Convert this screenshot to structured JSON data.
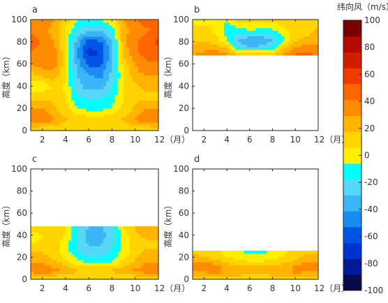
{
  "colorbar": {
    "title": "纬向风（m/s）",
    "min": -100,
    "max": 100,
    "ticks": [
      100,
      80,
      60,
      40,
      20,
      0,
      -20,
      -40,
      -60,
      -80,
      -100
    ],
    "colors": [
      "#0a0a4a",
      "#001a9a",
      "#0033cc",
      "#0055e6",
      "#1a8cf0",
      "#3cb4f5",
      "#55d8f5",
      "#00ffff",
      "#fff000",
      "#ffd400",
      "#ffb400",
      "#ff8c00",
      "#ff6400",
      "#f03c00",
      "#d21e00",
      "#b40a00",
      "#7a0000"
    ]
  },
  "chart_data": [
    {
      "type": "heatmap",
      "panel": "a",
      "ylabel": "高度（km）",
      "xlim": [
        1,
        12
      ],
      "ylim": [
        0,
        100
      ],
      "xticks": [
        "2",
        "4",
        "6",
        "8",
        "10",
        "12（月）"
      ],
      "yticks": [
        "0",
        "20",
        "40",
        "60",
        "80",
        "100"
      ],
      "data_top_km": 100,
      "months": [
        1,
        2,
        3,
        4,
        5,
        6,
        7,
        8,
        9,
        10,
        11,
        12
      ],
      "heights_km": [
        0,
        10,
        20,
        30,
        40,
        50,
        60,
        70,
        80,
        90,
        100
      ],
      "values": [
        [
          5,
          5,
          5,
          5,
          5,
          5,
          5,
          5,
          5,
          5,
          5,
          5
        ],
        [
          40,
          38,
          30,
          20,
          15,
          15,
          15,
          15,
          20,
          30,
          38,
          42
        ],
        [
          30,
          30,
          20,
          10,
          -5,
          -10,
          -10,
          -5,
          10,
          20,
          30,
          30
        ],
        [
          15,
          15,
          15,
          5,
          -15,
          -20,
          -20,
          -10,
          5,
          15,
          15,
          15
        ],
        [
          -5,
          -5,
          10,
          5,
          -25,
          -35,
          -35,
          -20,
          5,
          15,
          20,
          20
        ],
        [
          15,
          20,
          25,
          5,
          -30,
          -40,
          -45,
          -25,
          5,
          25,
          30,
          30
        ],
        [
          30,
          35,
          35,
          10,
          -35,
          -55,
          -55,
          -30,
          10,
          30,
          40,
          40
        ],
        [
          40,
          40,
          35,
          10,
          -40,
          -70,
          -65,
          -35,
          20,
          40,
          45,
          50
        ],
        [
          45,
          40,
          30,
          5,
          -35,
          -60,
          -55,
          -30,
          25,
          40,
          50,
          55
        ],
        [
          40,
          35,
          25,
          5,
          -20,
          -30,
          -30,
          -15,
          25,
          35,
          40,
          45
        ],
        [
          35,
          35,
          30,
          15,
          -5,
          -5,
          -5,
          5,
          30,
          40,
          45,
          45
        ]
      ]
    },
    {
      "type": "heatmap",
      "panel": "b",
      "ylabel": "高度（km）",
      "xlim": [
        1,
        12
      ],
      "ylim": [
        0,
        100
      ],
      "xticks": [
        "2",
        "4",
        "6",
        "8",
        "10",
        "12（月）"
      ],
      "yticks": [
        "0",
        "20",
        "40",
        "60",
        "80",
        "100"
      ],
      "data_top_km": 100,
      "data_bottom_km": 68,
      "months": [
        1,
        2,
        3,
        4,
        5,
        6,
        7,
        8,
        9,
        10,
        11,
        12
      ],
      "heights_km": [
        68,
        75,
        82,
        89,
        96,
        100
      ],
      "values": [
        [
          30,
          35,
          40,
          35,
          20,
          25,
          25,
          20,
          35,
          45,
          45,
          40
        ],
        [
          20,
          25,
          25,
          15,
          -20,
          -30,
          -25,
          -15,
          15,
          30,
          35,
          35
        ],
        [
          15,
          15,
          10,
          -5,
          -30,
          -40,
          -40,
          -30,
          -5,
          15,
          20,
          25
        ],
        [
          15,
          10,
          5,
          -10,
          -15,
          -10,
          -10,
          -10,
          0,
          10,
          15,
          20
        ],
        [
          5,
          5,
          5,
          -10,
          0,
          5,
          0,
          0,
          10,
          15,
          15,
          15
        ],
        [
          5,
          5,
          5,
          5,
          10,
          10,
          10,
          10,
          10,
          10,
          10,
          10
        ]
      ]
    },
    {
      "type": "heatmap",
      "panel": "c",
      "ylabel": "高度（km）",
      "xlim": [
        1,
        12
      ],
      "ylim": [
        0,
        100
      ],
      "xticks": [
        "2",
        "4",
        "6",
        "8",
        "10",
        "12（月）"
      ],
      "yticks": [
        "0",
        "20",
        "40",
        "60",
        "80",
        "100"
      ],
      "data_top_km": 48,
      "months": [
        1,
        2,
        3,
        4,
        5,
        6,
        7,
        8,
        9,
        10,
        11,
        12
      ],
      "heights_km": [
        0,
        8,
        16,
        24,
        32,
        40,
        48
      ],
      "values": [
        [
          5,
          5,
          5,
          5,
          5,
          5,
          5,
          5,
          5,
          5,
          5,
          5
        ],
        [
          35,
          38,
          35,
          25,
          20,
          18,
          18,
          20,
          25,
          32,
          38,
          40
        ],
        [
          28,
          28,
          20,
          10,
          -2,
          -10,
          -10,
          -5,
          8,
          18,
          28,
          30
        ],
        [
          20,
          18,
          10,
          0,
          -15,
          -25,
          -25,
          -15,
          0,
          15,
          20,
          20
        ],
        [
          5,
          10,
          10,
          0,
          -20,
          -30,
          -30,
          -20,
          0,
          12,
          15,
          15
        ],
        [
          -5,
          5,
          15,
          5,
          -20,
          -35,
          -35,
          -25,
          0,
          15,
          20,
          20
        ],
        [
          15,
          15,
          15,
          5,
          -15,
          -30,
          -30,
          -20,
          5,
          20,
          25,
          25
        ]
      ]
    },
    {
      "type": "heatmap",
      "panel": "d",
      "ylabel": "高度（km）",
      "xlim": [
        1,
        12
      ],
      "ylim": [
        0,
        100
      ],
      "xticks": [
        "2",
        "4",
        "6",
        "8",
        "10",
        "12（月）"
      ],
      "yticks": [
        "0",
        "20",
        "40",
        "60",
        "80",
        "100"
      ],
      "data_top_km": 26,
      "months": [
        1,
        2,
        3,
        4,
        5,
        6,
        7,
        8,
        9,
        10,
        11,
        12
      ],
      "heights_km": [
        0,
        6,
        12,
        18,
        26
      ],
      "values": [
        [
          5,
          5,
          5,
          5,
          5,
          5,
          5,
          5,
          5,
          5,
          5,
          5
        ],
        [
          25,
          28,
          30,
          28,
          25,
          22,
          22,
          25,
          28,
          30,
          28,
          25
        ],
        [
          38,
          40,
          35,
          25,
          20,
          18,
          18,
          20,
          25,
          32,
          38,
          40
        ],
        [
          22,
          22,
          18,
          10,
          5,
          2,
          2,
          5,
          10,
          18,
          22,
          24
        ],
        [
          15,
          12,
          8,
          0,
          -5,
          -10,
          -10,
          -5,
          2,
          10,
          15,
          15
        ]
      ]
    }
  ]
}
